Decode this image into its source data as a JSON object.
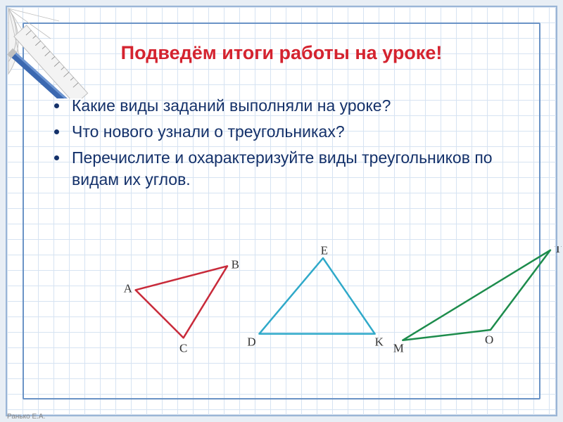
{
  "title": "Подведём  итоги  работы  на уроке!",
  "bullets": [
    "Какие  виды  заданий  выполняли на уроке?",
    "Что  нового  узнали о  треугольниках?",
    "Перечислите  и  охарактеризуйте  виды треугольников  по видам  их  углов."
  ],
  "triangles": {
    "t1": {
      "color": "#c82a3a",
      "vertices": {
        "A": [
          20,
          55
        ],
        "B": [
          135,
          25
        ],
        "C": [
          80,
          115
        ]
      },
      "label_pos": {
        "A": [
          5,
          58
        ],
        "B": [
          140,
          28
        ],
        "C": [
          75,
          133
        ]
      }
    },
    "t2": {
      "color": "#2fa9c9",
      "vertices": {
        "D": [
          175,
          110
        ],
        "E": [
          255,
          15
        ],
        "K": [
          320,
          110
        ]
      },
      "label_pos": {
        "D": [
          160,
          125
        ],
        "E": [
          252,
          10
        ],
        "K": [
          320,
          125
        ]
      }
    },
    "t3": {
      "color": "#1d8c4c",
      "vertices": {
        "M": [
          355,
          118
        ],
        "O": [
          465,
          105
        ],
        "T": [
          540,
          5
        ]
      },
      "label_pos": {
        "M": [
          343,
          133
        ],
        "O": [
          458,
          122
        ],
        "T": [
          545,
          8
        ]
      }
    },
    "stroke_width": 2.2
  },
  "footer": "Ранько Е.А.",
  "frame": {
    "outer_border": "#9ab5d6",
    "inner_border": "#6a93c6",
    "grid_color": "#d6e3f2",
    "grid_cell": 22,
    "bg": "#ffffff"
  },
  "typography": {
    "title_color": "#d4232f",
    "title_size_pt": 20,
    "body_color": "#14316a",
    "body_size_pt": 17,
    "label_size_pt": 11
  }
}
